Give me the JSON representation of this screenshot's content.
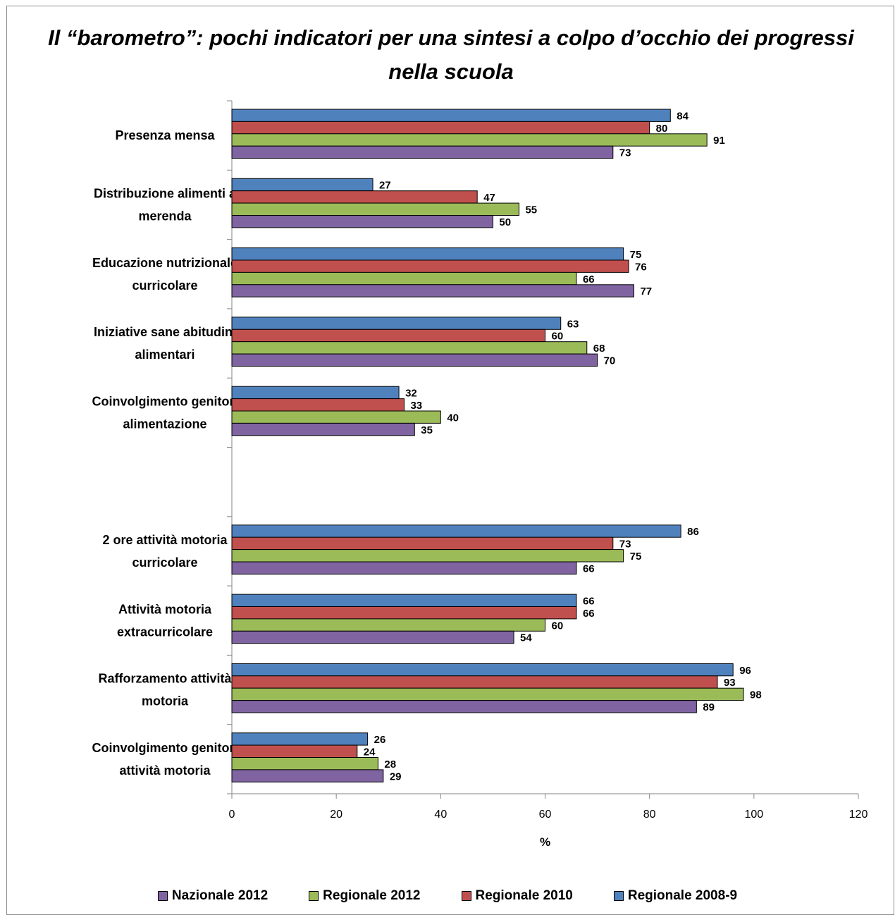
{
  "chart_data": {
    "type": "bar",
    "orientation": "horizontal",
    "title": "Il “barometro”: pochi indicatori per una sintesi a colpo d’occhio dei progressi nella scuola",
    "xlabel": "%",
    "xlim": [
      0,
      120
    ],
    "xticks": [
      "0",
      "20",
      "40",
      "60",
      "80",
      "100",
      "120"
    ],
    "grid": false,
    "legend_position": "bottom",
    "categories": [
      "Presenza mensa",
      "Distribuzione alimenti a merenda",
      "Educazione nutrizionale curricolare",
      "Iniziative sane abitudini alimentari",
      "Coinvolgimento genitori alimentazione",
      "",
      "2 ore attività motoria curricolare",
      "Attività motoria extracurricolare",
      "Rafforzamento attività motoria",
      "Coinvolgimento genitori attività motoria"
    ],
    "category_lines": [
      [
        "Presenza mensa"
      ],
      [
        "Distribuzione alimenti a",
        "merenda"
      ],
      [
        "Educazione nutrizionale",
        "curricolare"
      ],
      [
        "Iniziative sane abitudini",
        "alimentari"
      ],
      [
        "Coinvolgimento genitori",
        "alimentazione"
      ],
      [],
      [
        "2 ore attività motoria",
        "curricolare"
      ],
      [
        "Attività motoria",
        "extracurricolare"
      ],
      [
        "Rafforzamento attività",
        "motoria"
      ],
      [
        "Coinvolgimento genitori",
        "attività motoria"
      ]
    ],
    "series": [
      {
        "name": "Regionale 2008-9",
        "color": "#4f81bd",
        "values": [
          84,
          27,
          75,
          63,
          32,
          null,
          86,
          66,
          96,
          26
        ]
      },
      {
        "name": "Regionale 2010",
        "color": "#c0504d",
        "values": [
          80,
          47,
          76,
          60,
          33,
          null,
          73,
          66,
          93,
          24
        ]
      },
      {
        "name": "Regionale 2012",
        "color": "#9bbb59",
        "values": [
          91,
          55,
          66,
          68,
          40,
          null,
          75,
          60,
          98,
          28
        ]
      },
      {
        "name": "Nazionale 2012",
        "color": "#8064a2",
        "values": [
          73,
          50,
          77,
          70,
          35,
          null,
          66,
          54,
          89,
          29
        ]
      }
    ],
    "legend_order": [
      "Nazionale 2012",
      "Regionale 2012",
      "Regionale 2010",
      "Regionale 2008-9"
    ]
  }
}
